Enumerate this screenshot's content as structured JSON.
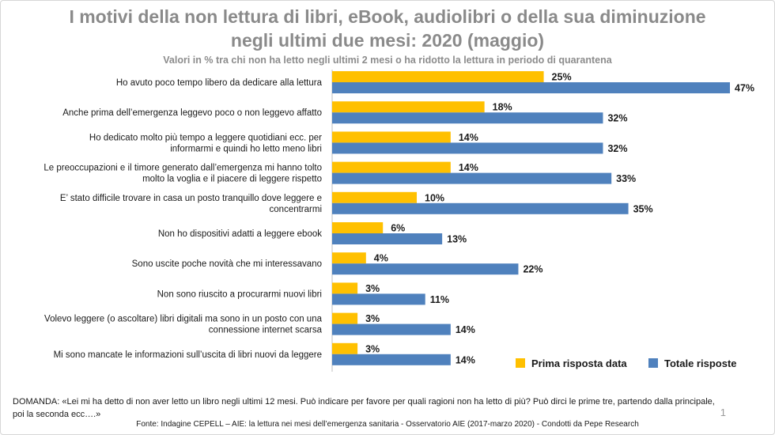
{
  "title_line1": "I motivi della non lettura di libri, eBook, audiolibri o della sua diminuzione",
  "title_line2": "negli ultimi due mesi: 2020 (maggio)",
  "subtitle": "Valori in % tra chi non ha letto negli ultimi 2 mesi o ha ridotto la lettura in periodo di quarantena",
  "question": "DOMANDA: «Lei mi ha detto di non aver letto un libro negli ultimi 12 mesi. Può indicare per favore per quali ragioni non ha letto di più? Può dirci le prime tre, partendo dalla principale, poi la seconda ecc….»",
  "source": "Fonte: Indagine CEPELL – AIE: la lettura nei mesi dell’emergenza sanitaria - Osservatorio AIE (2017-marzo 2020) - Condotti da Pepe Research",
  "page_number": "1",
  "chart_data": {
    "type": "bar",
    "orientation": "horizontal",
    "unit": "%",
    "categories": [
      [
        "Ho avuto poco tempo libero da dedicare alla lettura"
      ],
      [
        "Anche prima dell’emergenza leggevo poco o non leggevo affatto"
      ],
      [
        "Ho dedicato molto più tempo a leggere quotidiani ecc. per",
        "informarmi e quindi ho letto meno libri"
      ],
      [
        "Le preoccupazioni e il timore generato dall’emergenza mi hanno tolto",
        "molto la voglia e il piacere di leggere rispetto"
      ],
      [
        "E’ stato difficile trovare in casa un posto tranquillo dove leggere e",
        "concentrarmi"
      ],
      [
        "Non ho dispositivi adatti a leggere ebook"
      ],
      [
        "Sono uscite poche novità che mi interessavano"
      ],
      [
        "Non sono riuscito a procurarmi nuovi libri"
      ],
      [
        "Volevo leggere (o ascoltare) libri digitali ma sono in un posto con una",
        "connessione internet scarsa"
      ],
      [
        "Mi sono mancate le informazioni sull’uscita di libri nuovi da leggere"
      ]
    ],
    "series": [
      {
        "name": "Prima risposta data",
        "color": "#FFC000",
        "values": [
          25,
          18,
          14,
          14,
          10,
          6,
          4,
          3,
          3,
          3
        ]
      },
      {
        "name": "Totale risposte",
        "color": "#4F81BD",
        "values": [
          47,
          32,
          32,
          33,
          35,
          13,
          22,
          11,
          14,
          14
        ]
      }
    ],
    "xlim": [
      0,
      47
    ],
    "grid": false,
    "legend_position": "bottom-right"
  }
}
